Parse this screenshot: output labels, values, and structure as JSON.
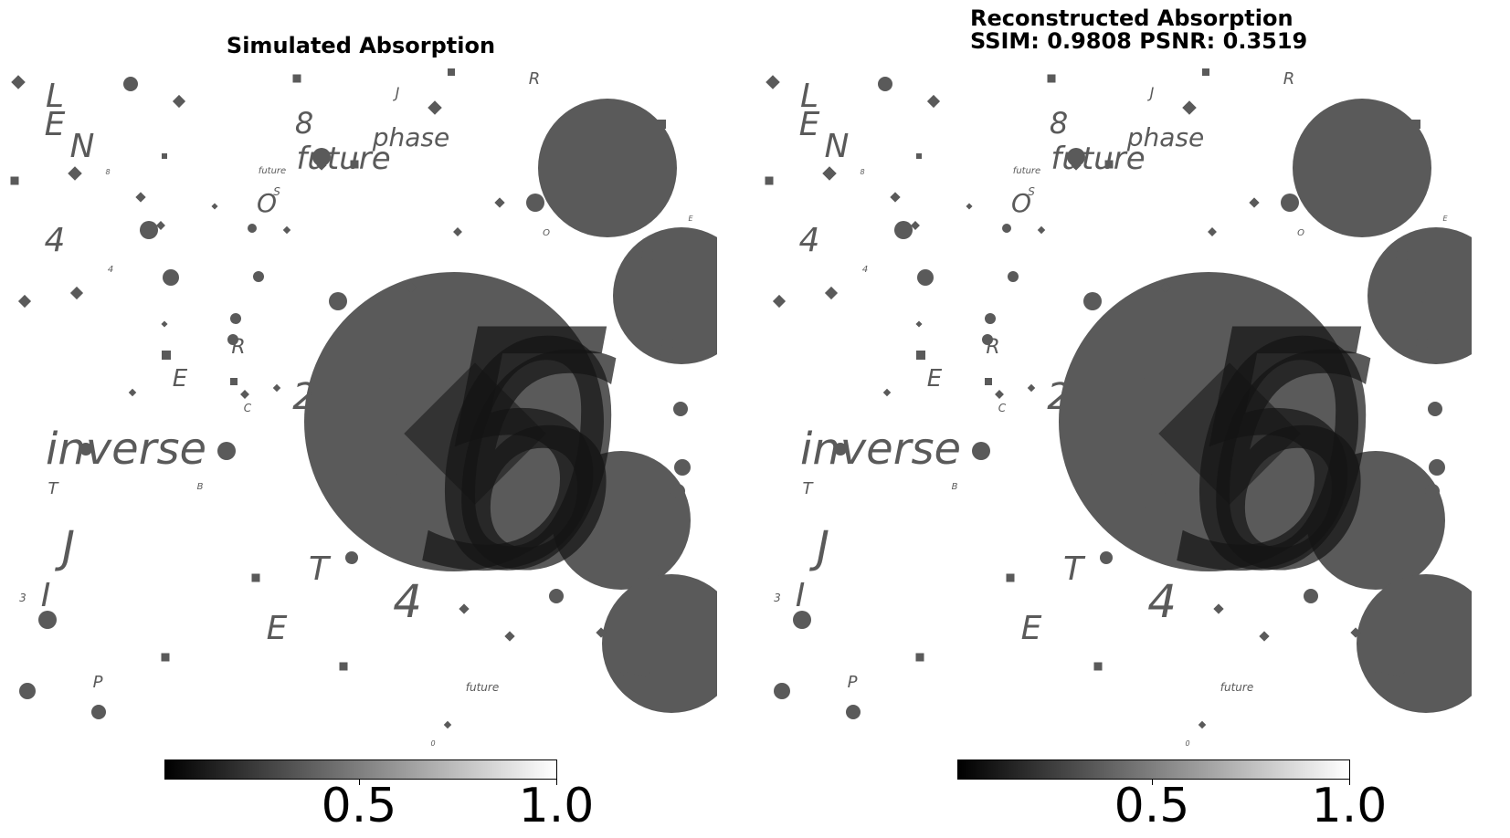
{
  "panels": [
    {
      "title": "Simulated Absorption",
      "colorbar": {
        "ticks": [
          "0.5",
          "1.0"
        ],
        "colormap": "gray"
      }
    },
    {
      "title": "Reconstructed Absorption\nSSIM: 0.9808 PSNR: 0.3519",
      "colorbar": {
        "ticks": [
          "0.5",
          "1.0"
        ],
        "colormap": "gray"
      }
    }
  ],
  "scene_labels": {
    "phase": "phase",
    "future": "future",
    "inverse": "inverse",
    "glyphs": [
      "L",
      "E",
      "N",
      "8",
      "J",
      "R",
      "O",
      "S",
      "4",
      "E",
      "R",
      "2",
      "C",
      "T",
      "B",
      "J",
      "I",
      "3",
      "U",
      "S",
      "T",
      "E",
      "4",
      "P",
      "0",
      "S",
      "E",
      "O",
      "4",
      "8"
    ]
  },
  "colors": {
    "shape_fill": "#5a5a5a",
    "dark_fill": "#141414",
    "background": "#ffffff"
  }
}
